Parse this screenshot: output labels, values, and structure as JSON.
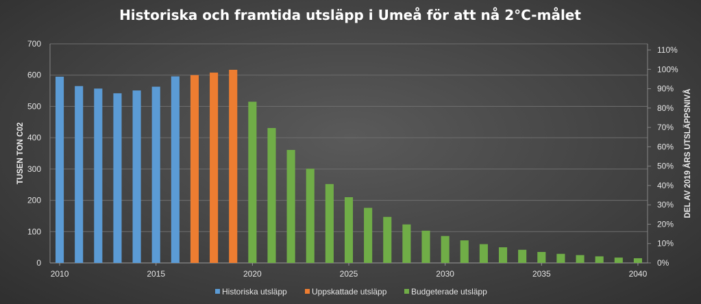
{
  "chart_data": {
    "type": "bar",
    "title": "Historiska och framtida utsläpp i Umeå för att nå 2°C-målet",
    "ylabel": "TUSEN TON C02",
    "y2label": "DEL AV 2019 ÅRS UTSLÄPPSNIVÅ",
    "xlabel": "",
    "x": [
      2010,
      2011,
      2012,
      2013,
      2014,
      2015,
      2016,
      2017,
      2018,
      2019,
      2020,
      2021,
      2022,
      2023,
      2024,
      2025,
      2026,
      2027,
      2028,
      2029,
      2030,
      2031,
      2032,
      2033,
      2034,
      2035,
      2036,
      2037,
      2038,
      2039,
      2040
    ],
    "xticks": [
      "2010",
      "2015",
      "2020",
      "2025",
      "2030",
      "2035",
      "2040"
    ],
    "ylim": [
      0,
      700
    ],
    "yticks": [
      "0",
      "100",
      "200",
      "300",
      "400",
      "500",
      "600",
      "700"
    ],
    "y2ticks": [
      "0%",
      "10%",
      "20%",
      "30%",
      "40%",
      "50%",
      "60%",
      "70%",
      "80%",
      "90%",
      "100%",
      "110%"
    ],
    "grid": true,
    "legend_position": "bottom",
    "series": [
      {
        "name": "Historiska utsläpp",
        "color": "#5b9bd5",
        "values": [
          595,
          565,
          557,
          542,
          551,
          563,
          596,
          null,
          null,
          null,
          null,
          null,
          null,
          null,
          null,
          null,
          null,
          null,
          null,
          null,
          null,
          null,
          null,
          null,
          null,
          null,
          null,
          null,
          null,
          null,
          null
        ]
      },
      {
        "name": "Uppskattade utsläpp",
        "color": "#ed7d31",
        "values": [
          null,
          null,
          null,
          null,
          null,
          null,
          null,
          600,
          608,
          617,
          null,
          null,
          null,
          null,
          null,
          null,
          null,
          null,
          null,
          null,
          null,
          null,
          null,
          null,
          null,
          null,
          null,
          null,
          null,
          null,
          null
        ]
      },
      {
        "name": "Budgeterade utsläpp",
        "color": "#70ad47",
        "values": [
          null,
          null,
          null,
          null,
          null,
          null,
          null,
          null,
          null,
          null,
          515,
          431,
          361,
          301,
          252,
          210,
          176,
          147,
          123,
          103,
          86,
          72,
          60,
          50,
          42,
          35,
          29,
          25,
          21,
          17,
          15
        ]
      }
    ]
  }
}
